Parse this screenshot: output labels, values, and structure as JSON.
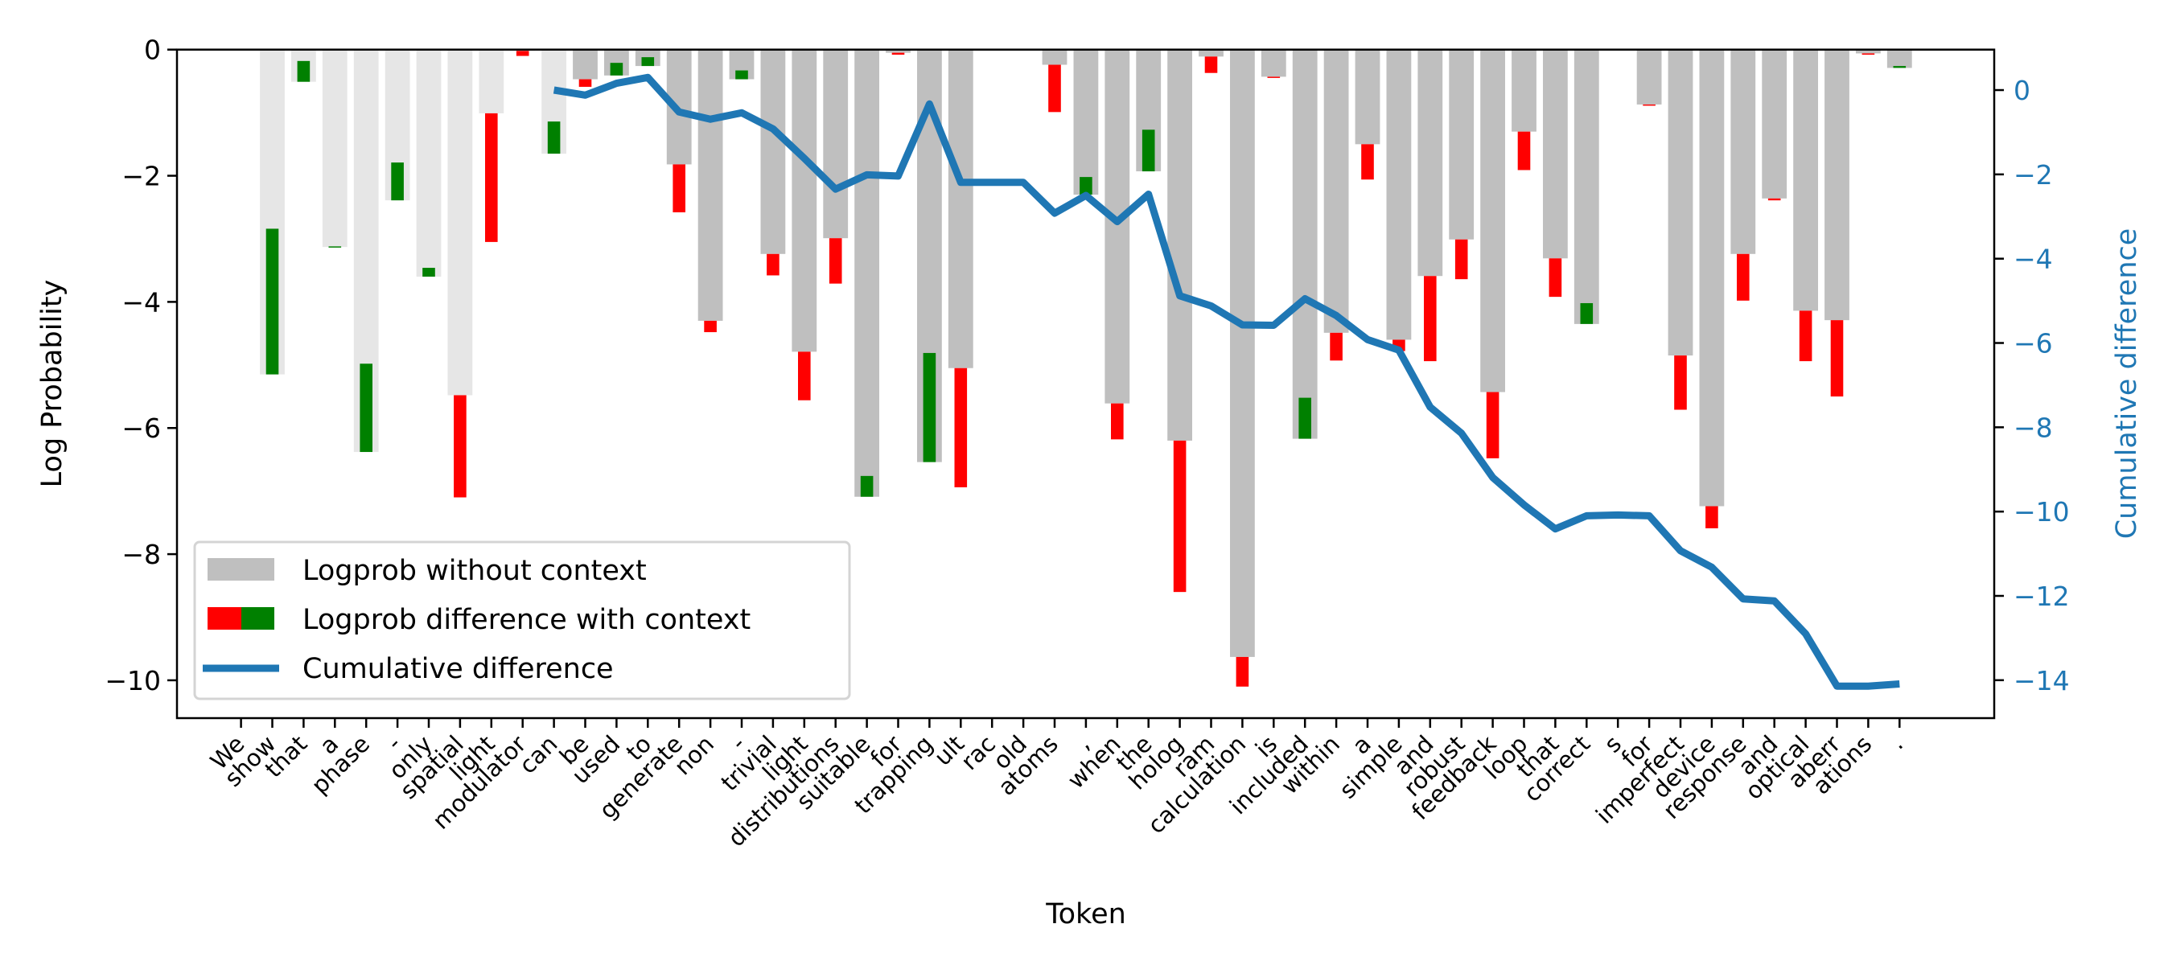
{
  "chart_data": {
    "type": "bar+line",
    "xlabel": "Token",
    "ylabel": "Log Probability",
    "ylabel_right": "Cumulative difference",
    "ylim": [
      -10.6,
      0
    ],
    "ylim_right": [
      -14.9,
      0.96
    ],
    "yticks": [
      0,
      -2,
      -4,
      -6,
      -8,
      -10
    ],
    "ytick_labels": [
      "0",
      "−2",
      "−4",
      "−6",
      "−8",
      "−10"
    ],
    "yticks_right": [
      0,
      -2,
      -4,
      -6,
      -8,
      -10,
      -12,
      -14
    ],
    "ytick_labels_right": [
      "0",
      "−2",
      "−4",
      "−6",
      "−8",
      "−10",
      "−12",
      "−14"
    ],
    "grid": false,
    "legend_position": "lower-left",
    "colors": {
      "no_context": "#bfbfbf",
      "no_context_prompt": "#e6e6e6",
      "decrease": "#ff0000",
      "increase": "#008000",
      "cumulative": "#1f77b4"
    },
    "prompt_token_count": 11,
    "tokens": [
      "We",
      "show",
      "that",
      "a",
      "phase",
      "-",
      "only",
      "spatial",
      "light",
      "modulator",
      "can",
      "be",
      "used",
      "to",
      "generate",
      "non",
      "-",
      "trivial",
      "light",
      "distributions",
      "suitable",
      "for",
      "trapping",
      "ult",
      "rac",
      "old",
      "atoms",
      ",",
      "when",
      "the",
      "holog",
      "ram",
      "calculation",
      "is",
      "included",
      "within",
      "a",
      "simple",
      "and",
      "robust",
      "feedback",
      "loop",
      "that",
      "correct",
      "s",
      "for",
      "imperfect",
      "device",
      "response",
      "and",
      "optical",
      "aberr",
      "ations",
      "."
    ],
    "series": [
      {
        "name": "Logprob without context",
        "type": "bar",
        "values": [
          null,
          -5.15,
          -0.51,
          -3.13,
          -6.38,
          -2.39,
          -3.6,
          -5.48,
          -1.01,
          -0.02,
          -1.65,
          -0.47,
          -0.41,
          -0.26,
          -1.82,
          -4.3,
          -0.47,
          -3.24,
          -4.79,
          -2.99,
          -7.09,
          -0.05,
          -6.54,
          -5.05,
          0,
          0,
          -0.24,
          -2.3,
          -5.61,
          -1.93,
          -6.2,
          -0.11,
          -9.63,
          -0.43,
          -6.17,
          -4.49,
          -1.5,
          -4.6,
          -3.59,
          -3.01,
          -5.43,
          -1.3,
          -3.31,
          -4.35,
          0,
          -0.87,
          -4.85,
          -7.24,
          -3.24,
          -2.36,
          -4.14,
          -4.29,
          -0.06,
          -0.29
        ]
      },
      {
        "name": "Logprob difference with context",
        "type": "bar",
        "values": [
          null,
          2.31,
          0.33,
          0.01,
          1.4,
          0.6,
          0.14,
          -1.62,
          -2.04,
          -0.08,
          0.51,
          -0.12,
          0.2,
          0.14,
          -0.76,
          -0.18,
          0.14,
          -0.34,
          -0.77,
          -0.72,
          0.33,
          -0.03,
          1.73,
          -1.89,
          0,
          0,
          -0.75,
          0.28,
          -0.57,
          0.66,
          -2.4,
          -0.26,
          -0.47,
          -0.01,
          0.65,
          -0.44,
          -0.56,
          -0.18,
          -1.35,
          -0.63,
          -1.05,
          -0.61,
          -0.61,
          0.33,
          0,
          -0.01,
          -0.86,
          -0.35,
          -0.74,
          -0.03,
          -0.8,
          -1.21,
          -0.02,
          0.03
        ]
      },
      {
        "name": "Cumulative difference",
        "type": "line",
        "axis": "right",
        "values": [
          null,
          null,
          null,
          null,
          null,
          null,
          null,
          null,
          null,
          null,
          0.0,
          -0.12,
          0.16,
          0.3,
          -0.52,
          -0.69,
          -0.54,
          -0.92,
          -1.62,
          -2.35,
          -2.01,
          -2.04,
          -0.33,
          -2.19,
          -2.19,
          -2.19,
          -2.92,
          -2.5,
          -3.12,
          -2.47,
          -4.88,
          -5.12,
          -5.57,
          -5.58,
          -4.95,
          -5.35,
          -5.92,
          -6.17,
          -7.52,
          -8.14,
          -9.19,
          -9.84,
          -10.41,
          -10.1,
          -10.08,
          -10.1,
          -10.93,
          -11.32,
          -12.07,
          -12.12,
          -12.9,
          -14.14,
          -14.14,
          -14.09
        ]
      }
    ]
  }
}
